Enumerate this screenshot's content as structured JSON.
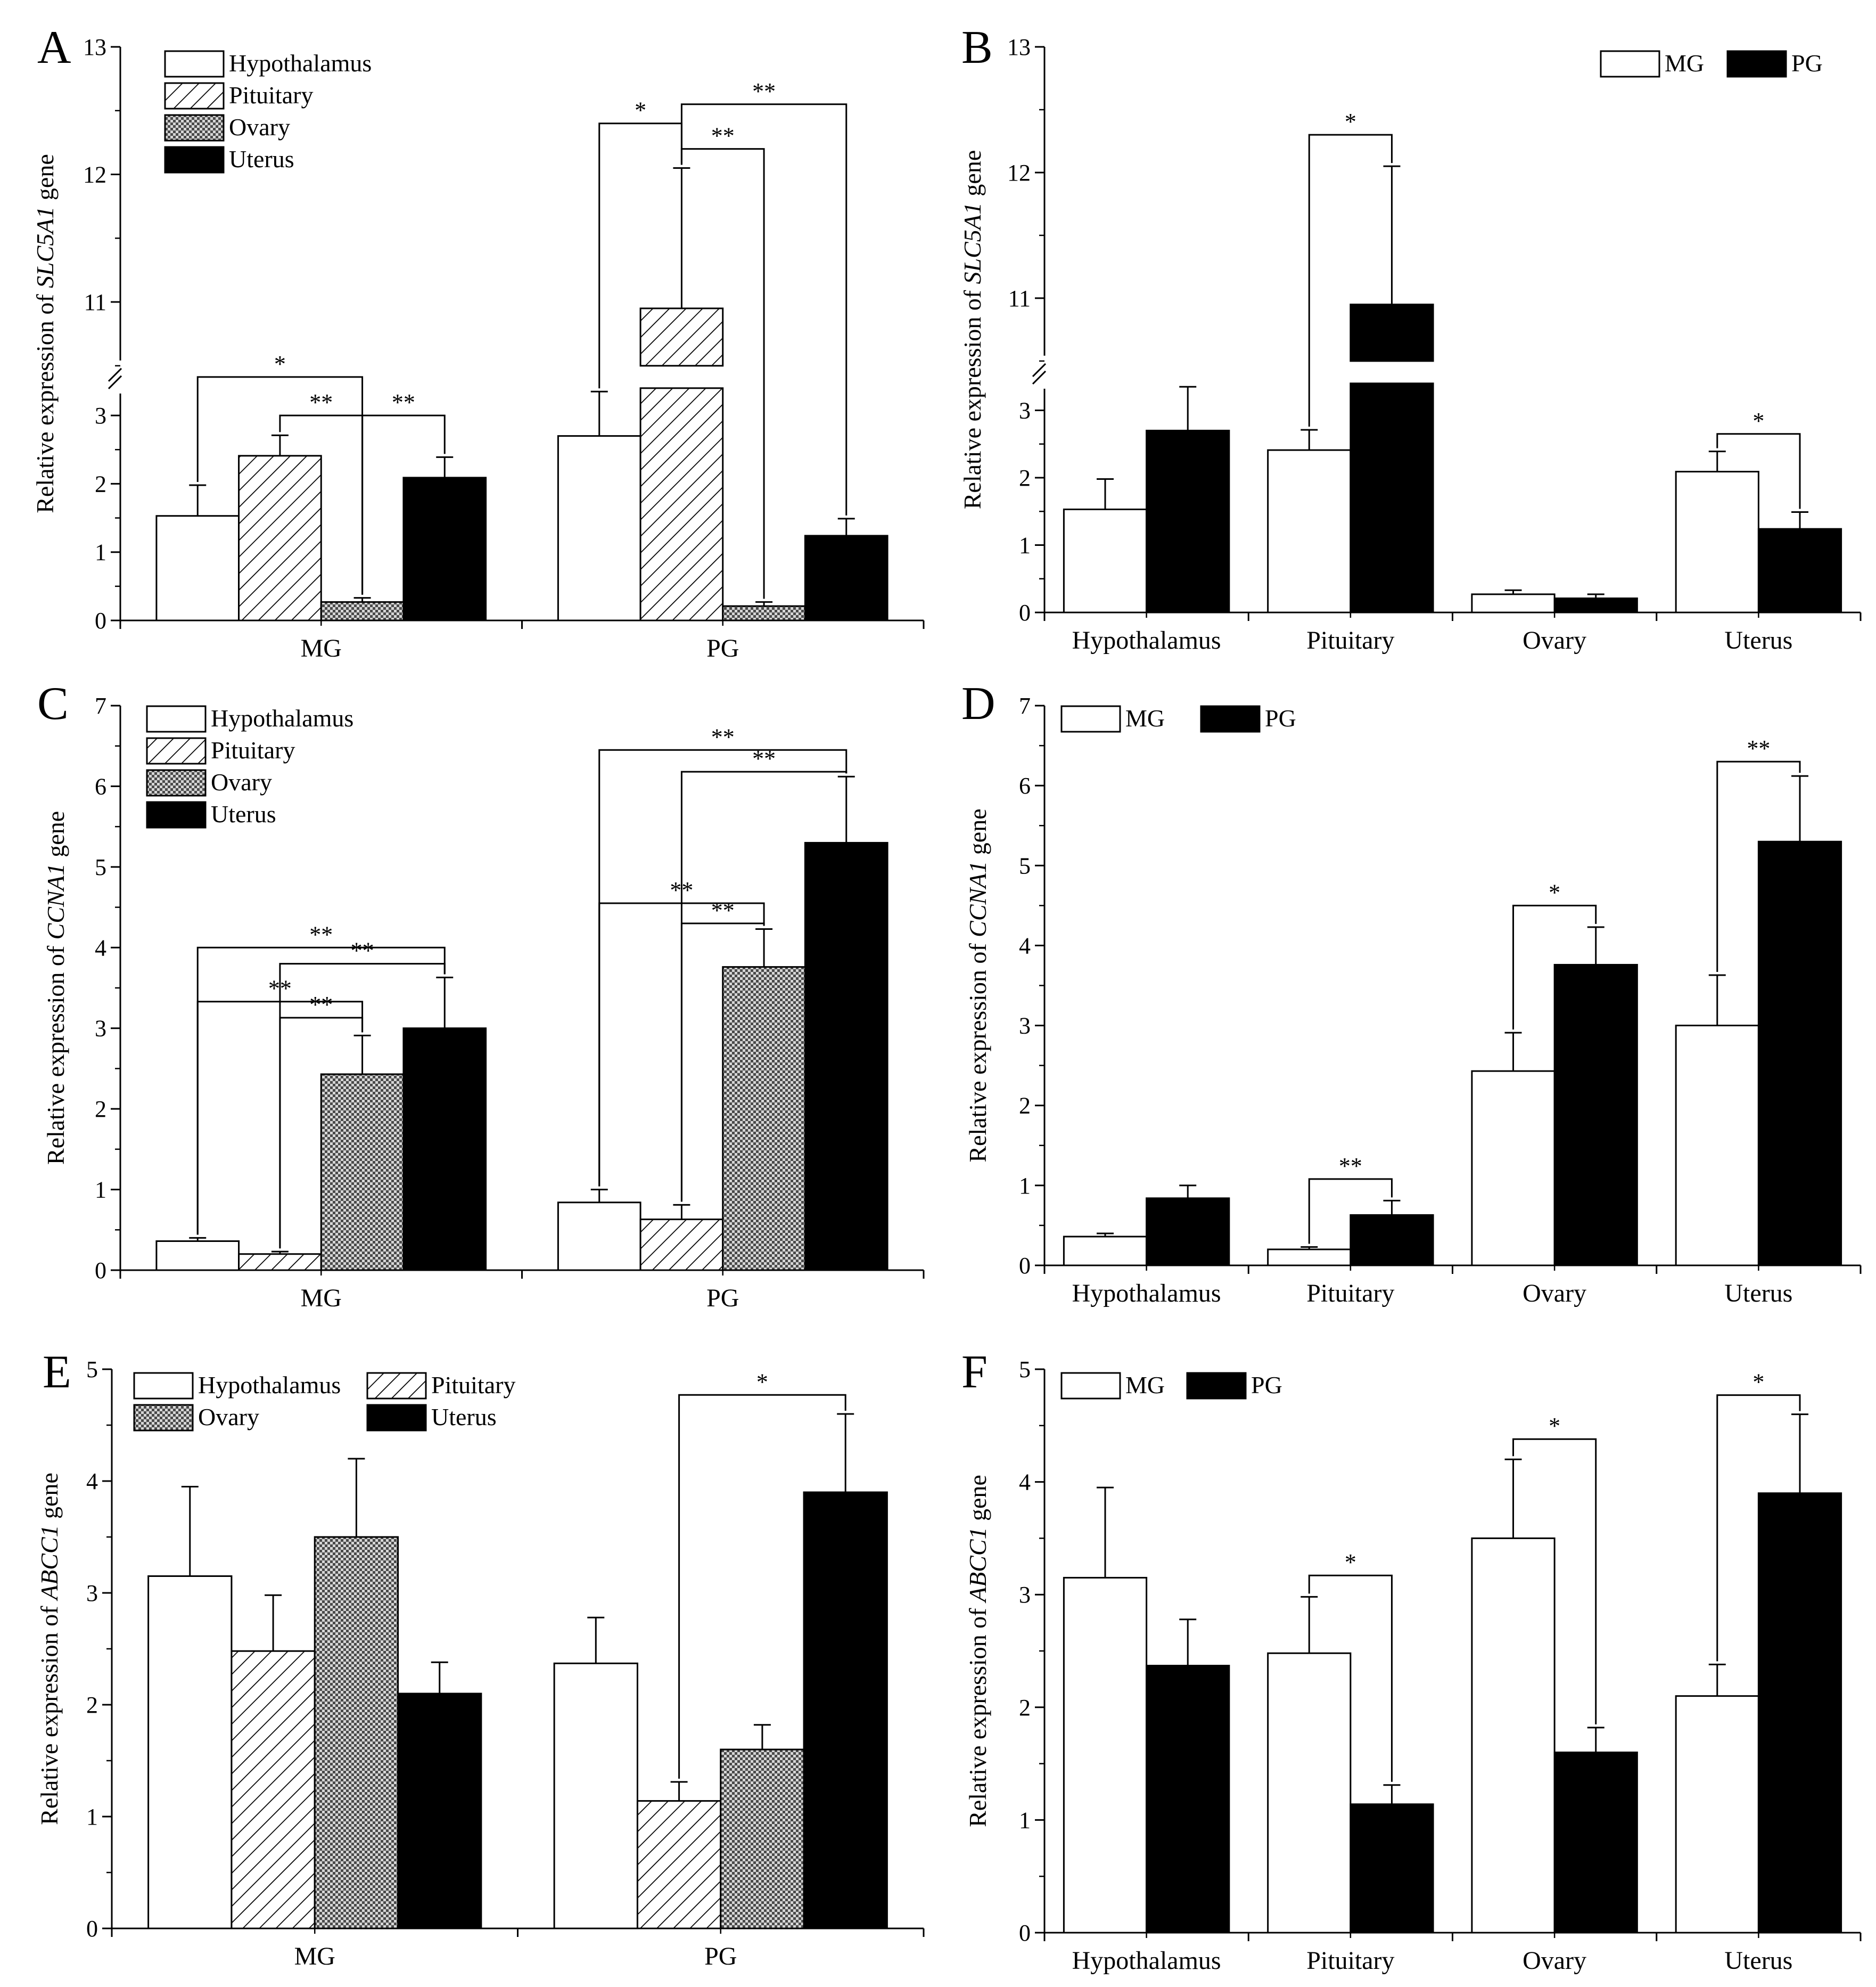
{
  "figure": {
    "groups": [
      "MG",
      "PG"
    ],
    "tissues": [
      "Hypothalamus",
      "Pituitary",
      "Ovary",
      "Uterus"
    ],
    "colors": {
      "axis": "#000000",
      "background": "#ffffff",
      "MG": "#ffffff",
      "PG": "#000000",
      "Uterus": "#000000"
    },
    "star1": "*",
    "star2": "**",
    "break_mark": "//"
  },
  "chart_data": [
    {
      "id": "A",
      "letter": "A",
      "type": "bar",
      "layout": "by-group",
      "ylabel_pre": "Relative expression of ",
      "ylabel_gene": "SLC5A1",
      "ylabel_post": " gene",
      "xlabel": "",
      "categories": [
        "MG",
        "PG"
      ],
      "series": [
        {
          "name": "Hypothalamus",
          "values": [
            1.53,
            2.7
          ],
          "errors": [
            0.45,
            0.65
          ]
        },
        {
          "name": "Pituitary",
          "values": [
            2.41,
            10.95
          ],
          "errors": [
            0.3,
            1.1
          ]
        },
        {
          "name": "Ovary",
          "values": [
            0.27,
            0.21
          ],
          "errors": [
            0.06,
            0.06
          ]
        },
        {
          "name": "Uterus",
          "values": [
            2.09,
            1.24
          ],
          "errors": [
            0.3,
            0.25
          ]
        }
      ],
      "axis_break": [
        3.4,
        10.5
      ],
      "ylim": [
        0,
        13
      ],
      "yticks": [
        0,
        1,
        2,
        3,
        11,
        12,
        13
      ],
      "legend": {
        "entries": [
          "Hypothalamus",
          "Pituitary",
          "Ovary",
          "Uterus"
        ],
        "position": "top-left"
      },
      "significance": [
        {
          "c1": 0,
          "s1": 0,
          "c2": 0,
          "s2": 2,
          "y": 3.5,
          "label": "*"
        },
        {
          "c1": 0,
          "s1": 1,
          "c2": 0,
          "s2": 2,
          "y": 3.0,
          "label": "**"
        },
        {
          "c1": 0,
          "s1": 2,
          "c2": 0,
          "s2": 3,
          "y": 3.0,
          "label": "**"
        },
        {
          "c1": 1,
          "s1": 0,
          "c2": 1,
          "s2": 1,
          "y": 12.4,
          "label": "*"
        },
        {
          "c1": 1,
          "s1": 1,
          "c2": 1,
          "s2": 2,
          "y": 12.2,
          "label": "**"
        },
        {
          "c1": 1,
          "s1": 1,
          "c2": 1,
          "s2": 3,
          "y": 12.55,
          "label": "**"
        }
      ]
    },
    {
      "id": "B",
      "letter": "B",
      "type": "bar",
      "layout": "by-tissue",
      "ylabel_pre": "Relative expression of ",
      "ylabel_gene": "SLC5A1",
      "ylabel_post": " gene",
      "xlabel": "",
      "categories": [
        "Hypothalamus",
        "Pituitary",
        "Ovary",
        "Uterus"
      ],
      "series": [
        {
          "name": "MG",
          "values": [
            1.53,
            2.41,
            0.27,
            2.09
          ],
          "errors": [
            0.45,
            0.3,
            0.06,
            0.3
          ]
        },
        {
          "name": "PG",
          "values": [
            2.7,
            10.95,
            0.21,
            1.24
          ],
          "errors": [
            0.65,
            1.1,
            0.06,
            0.25
          ]
        }
      ],
      "axis_break": [
        3.4,
        10.5
      ],
      "ylim": [
        0,
        13
      ],
      "yticks": [
        0,
        1,
        2,
        3,
        11,
        12,
        13
      ],
      "legend": {
        "entries": [
          "MG",
          "PG"
        ],
        "position": "top-right"
      },
      "significance": [
        {
          "c1": 1,
          "s1": 0,
          "c2": 1,
          "s2": 1,
          "y": 12.3,
          "label": "*"
        },
        {
          "c1": 3,
          "s1": 0,
          "c2": 3,
          "s2": 1,
          "y": 2.65,
          "label": "*"
        }
      ]
    },
    {
      "id": "C",
      "letter": "C",
      "type": "bar",
      "layout": "by-group",
      "ylabel_pre": "Relative expression of ",
      "ylabel_gene": "CCNA1",
      "ylabel_post": " gene",
      "xlabel": "",
      "categories": [
        "MG",
        "PG"
      ],
      "series": [
        {
          "name": "Hypothalamus",
          "values": [
            0.36,
            0.84
          ],
          "errors": [
            0.04,
            0.16
          ]
        },
        {
          "name": "Pituitary",
          "values": [
            0.2,
            0.63
          ],
          "errors": [
            0.03,
            0.18
          ]
        },
        {
          "name": "Ovary",
          "values": [
            2.43,
            3.76
          ],
          "errors": [
            0.48,
            0.47
          ]
        },
        {
          "name": "Uterus",
          "values": [
            3.0,
            5.3
          ],
          "errors": [
            0.63,
            0.82
          ]
        }
      ],
      "ylim": [
        0,
        7
      ],
      "yticks": [
        0,
        1,
        2,
        3,
        4,
        5,
        6,
        7
      ],
      "legend": {
        "entries": [
          "Hypothalamus",
          "Pituitary",
          "Ovary",
          "Uterus"
        ],
        "position": "top-left"
      },
      "significance": [
        {
          "c1": 0,
          "s1": 0,
          "c2": 0,
          "s2": 3,
          "y": 4.0,
          "label": "**"
        },
        {
          "c1": 0,
          "s1": 1,
          "c2": 0,
          "s2": 3,
          "y": 3.8,
          "label": "**"
        },
        {
          "c1": 0,
          "s1": 0,
          "c2": 0,
          "s2": 2,
          "y": 3.33,
          "label": "**"
        },
        {
          "c1": 0,
          "s1": 1,
          "c2": 0,
          "s2": 2,
          "y": 3.13,
          "label": "**"
        },
        {
          "c1": 1,
          "s1": 0,
          "c2": 1,
          "s2": 3,
          "y": 6.45,
          "label": "**"
        },
        {
          "c1": 1,
          "s1": 1,
          "c2": 1,
          "s2": 3,
          "y": 6.18,
          "label": "**"
        },
        {
          "c1": 1,
          "s1": 0,
          "c2": 1,
          "s2": 2,
          "y": 4.55,
          "label": "**"
        },
        {
          "c1": 1,
          "s1": 1,
          "c2": 1,
          "s2": 2,
          "y": 4.3,
          "label": "**"
        }
      ]
    },
    {
      "id": "D",
      "letter": "D",
      "type": "bar",
      "layout": "by-tissue",
      "ylabel_pre": "Relative expression of ",
      "ylabel_gene": "CCNA1",
      "ylabel_post": " gene",
      "xlabel": "",
      "categories": [
        "Hypothalamus",
        "Pituitary",
        "Ovary",
        "Uterus"
      ],
      "series": [
        {
          "name": "MG",
          "values": [
            0.36,
            0.2,
            2.43,
            3.0
          ],
          "errors": [
            0.04,
            0.03,
            0.48,
            0.63
          ]
        },
        {
          "name": "PG",
          "values": [
            0.84,
            0.63,
            3.76,
            5.3
          ],
          "errors": [
            0.16,
            0.18,
            0.47,
            0.82
          ]
        }
      ],
      "ylim": [
        0,
        7
      ],
      "yticks": [
        0,
        1,
        2,
        3,
        4,
        5,
        6,
        7
      ],
      "legend": {
        "entries": [
          "MG",
          "PG"
        ],
        "position": "top-left"
      },
      "significance": [
        {
          "c1": 1,
          "s1": 0,
          "c2": 1,
          "s2": 1,
          "y": 1.08,
          "label": "**"
        },
        {
          "c1": 2,
          "s1": 0,
          "c2": 2,
          "s2": 1,
          "y": 4.5,
          "label": "*"
        },
        {
          "c1": 3,
          "s1": 0,
          "c2": 3,
          "s2": 1,
          "y": 6.3,
          "label": "**"
        }
      ]
    },
    {
      "id": "E",
      "letter": "E",
      "type": "bar",
      "layout": "by-group",
      "ylabel_pre": "Relative expression of ",
      "ylabel_gene": "ABCC1",
      "ylabel_post": " gene",
      "xlabel": "",
      "categories": [
        "MG",
        "PG"
      ],
      "series": [
        {
          "name": "Hypothalamus",
          "values": [
            3.15,
            2.37
          ],
          "errors": [
            0.8,
            0.41
          ]
        },
        {
          "name": "Pituitary",
          "values": [
            2.48,
            1.14
          ],
          "errors": [
            0.5,
            0.17
          ]
        },
        {
          "name": "Ovary",
          "values": [
            3.5,
            1.6
          ],
          "errors": [
            0.7,
            0.22
          ]
        },
        {
          "name": "Uterus",
          "values": [
            2.1,
            3.9
          ],
          "errors": [
            0.28,
            0.7
          ]
        }
      ],
      "ylim": [
        0,
        5
      ],
      "yticks": [
        0,
        1,
        2,
        3,
        4,
        5
      ],
      "legend": {
        "entries": [
          "Hypothalamus",
          "Pituitary",
          "Ovary",
          "Uterus"
        ],
        "position": "top-left"
      },
      "significance": [
        {
          "c1": 1,
          "s1": 1,
          "c2": 1,
          "s2": 3,
          "y": 4.77,
          "label": "*"
        }
      ]
    },
    {
      "id": "F",
      "letter": "F",
      "type": "bar",
      "layout": "by-tissue",
      "ylabel_pre": "Relative expression of ",
      "ylabel_gene": "ABCC1",
      "ylabel_post": " gene",
      "xlabel": "",
      "categories": [
        "Hypothalamus",
        "Pituitary",
        "Ovary",
        "Uterus"
      ],
      "series": [
        {
          "name": "MG",
          "values": [
            3.15,
            2.48,
            3.5,
            2.1
          ],
          "errors": [
            0.8,
            0.5,
            0.7,
            0.28
          ]
        },
        {
          "name": "PG",
          "values": [
            2.37,
            1.14,
            1.6,
            3.9
          ],
          "errors": [
            0.41,
            0.17,
            0.22,
            0.7
          ]
        }
      ],
      "ylim": [
        0,
        5
      ],
      "yticks": [
        0,
        1,
        2,
        3,
        4,
        5
      ],
      "legend": {
        "entries": [
          "MG",
          "PG"
        ],
        "position": "top-left"
      },
      "significance": [
        {
          "c1": 1,
          "s1": 0,
          "c2": 1,
          "s2": 1,
          "y": 3.17,
          "label": "*"
        },
        {
          "c1": 2,
          "s1": 0,
          "c2": 2,
          "s2": 1,
          "y": 4.38,
          "label": "*"
        },
        {
          "c1": 3,
          "s1": 0,
          "c2": 3,
          "s2": 1,
          "y": 4.77,
          "label": "*"
        }
      ]
    }
  ]
}
